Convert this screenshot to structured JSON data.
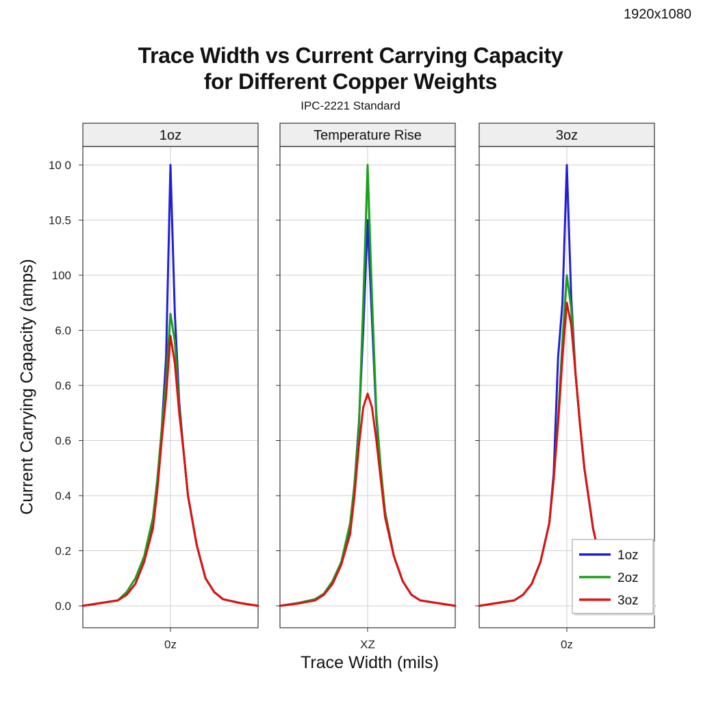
{
  "corner_label": "1920x1080",
  "chart_data": {
    "type": "line",
    "title": "Trace Width vs Current Carrying Capacity\nfor Different Copper Weights",
    "subtitle": "IPC-2221 Standard",
    "ylabel": "Current Carrying Capacity (amps)",
    "xlabel": "Trace Width (mils)",
    "ytick_labels": [
      "0.0",
      "0.2",
      "0.4",
      "0.6",
      "0.6",
      "6.0",
      "100",
      "10.5",
      "10 0"
    ],
    "ylim": [
      0,
      8
    ],
    "xlim": [
      -10,
      10
    ],
    "grid": true,
    "legend_position": "bottom-right",
    "legend": [
      "1oz",
      "2oz",
      "3oz"
    ],
    "colors": {
      "1oz": "#1f1fd6",
      "2oz": "#1aa01a",
      "3oz": "#e01010"
    },
    "panels": [
      {
        "title": "1oz",
        "xtick_label": "0z",
        "series": [
          {
            "name": "1oz",
            "x": [
              -10,
              -8,
              -6,
              -5,
              -4,
              -3,
              -2,
              -1.5,
              -1,
              -0.5,
              0,
              0.5,
              1,
              1.5,
              2,
              3,
              4,
              5,
              6,
              8,
              10
            ],
            "y": [
              0,
              0.05,
              0.1,
              0.2,
              0.4,
              0.8,
              1.5,
              2.2,
              3.2,
              4.5,
              8,
              5.3,
              3.7,
              2.8,
              2.0,
              1.1,
              0.5,
              0.25,
              0.12,
              0.05,
              0
            ]
          },
          {
            "name": "2oz",
            "x": [
              -10,
              -8,
              -6,
              -5,
              -4,
              -3,
              -2,
              -1.5,
              -1,
              -0.5,
              0,
              0.5,
              1,
              1.5,
              2,
              3,
              4,
              5,
              6,
              8,
              10
            ],
            "y": [
              0,
              0.05,
              0.1,
              0.25,
              0.5,
              0.9,
              1.6,
              2.3,
              3.2,
              4.1,
              5.3,
              4.8,
              3.6,
              2.8,
              2.0,
              1.1,
              0.5,
              0.25,
              0.12,
              0.05,
              0
            ]
          },
          {
            "name": "3oz",
            "x": [
              -10,
              -8,
              -6,
              -5,
              -4,
              -3,
              -2,
              -1.5,
              -1,
              -0.5,
              0,
              0.5,
              1,
              1.5,
              2,
              3,
              4,
              5,
              6,
              8,
              10
            ],
            "y": [
              0,
              0.05,
              0.1,
              0.2,
              0.4,
              0.8,
              1.4,
              2.1,
              3.0,
              3.8,
              4.9,
              4.4,
              3.5,
              2.8,
              2.0,
              1.1,
              0.5,
              0.25,
              0.12,
              0.05,
              0
            ]
          }
        ]
      },
      {
        "title": "Temperature Rise",
        "xtick_label": "XZ",
        "series": [
          {
            "name": "1oz",
            "x": [
              -10,
              -8,
              -6,
              -5,
              -4,
              -3,
              -2,
              -1.5,
              -1,
              -0.5,
              0,
              0.5,
              1,
              1.5,
              2,
              3,
              4,
              5,
              6,
              8,
              10
            ],
            "y": [
              0,
              0.05,
              0.1,
              0.2,
              0.4,
              0.75,
              1.4,
              2.2,
              3.3,
              5.0,
              7.0,
              5.2,
              3.4,
              2.4,
              1.7,
              0.9,
              0.45,
              0.2,
              0.1,
              0.05,
              0
            ]
          },
          {
            "name": "2oz",
            "x": [
              -10,
              -8,
              -6,
              -5,
              -4,
              -3,
              -2,
              -1.5,
              -1,
              -0.5,
              0,
              0.5,
              1,
              1.5,
              2,
              3,
              4,
              5,
              6,
              8,
              10
            ],
            "y": [
              0,
              0.05,
              0.12,
              0.22,
              0.45,
              0.8,
              1.5,
              2.2,
              3.2,
              5.5,
              8,
              5.6,
              3.5,
              2.5,
              1.7,
              0.9,
              0.45,
              0.2,
              0.1,
              0.05,
              0
            ]
          },
          {
            "name": "3oz",
            "x": [
              -10,
              -8,
              -6,
              -5,
              -4,
              -3,
              -2,
              -1.5,
              -1,
              -0.5,
              0,
              0.5,
              1,
              1.5,
              2,
              3,
              4,
              5,
              6,
              8,
              10
            ],
            "y": [
              0,
              0.04,
              0.1,
              0.2,
              0.4,
              0.75,
              1.3,
              2.0,
              2.9,
              3.6,
              3.85,
              3.6,
              3.0,
              2.3,
              1.6,
              0.9,
              0.45,
              0.2,
              0.1,
              0.05,
              0
            ]
          }
        ]
      },
      {
        "title": "3oz",
        "xtick_label": "0z",
        "series": [
          {
            "name": "1oz",
            "x": [
              -10,
              -8,
              -6,
              -5,
              -4,
              -3,
              -2,
              -1.5,
              -1,
              -0.5,
              0,
              0.5,
              1,
              1.5,
              2,
              3,
              4,
              5,
              6,
              8,
              10
            ],
            "y": [
              0,
              0.05,
              0.1,
              0.2,
              0.4,
              0.8,
              1.5,
              2.4,
              4.5,
              5.5,
              8,
              5.6,
              4.2,
              3.3,
              2.5,
              1.4,
              0.7,
              0.35,
              0.15,
              0.05,
              0
            ]
          },
          {
            "name": "2oz",
            "x": [
              -10,
              -8,
              -6,
              -5,
              -4,
              -3,
              -2,
              -1.5,
              -1,
              -0.5,
              0,
              0.5,
              1,
              1.5,
              2,
              3,
              4,
              5,
              6,
              8,
              10
            ],
            "y": [
              0,
              0.05,
              0.1,
              0.2,
              0.4,
              0.8,
              1.5,
              2.3,
              3.4,
              4.8,
              6.0,
              5.4,
              4.2,
              3.3,
              2.5,
              1.4,
              0.7,
              0.35,
              0.15,
              0.05,
              0
            ]
          },
          {
            "name": "3oz",
            "x": [
              -10,
              -8,
              -6,
              -5,
              -4,
              -3,
              -2,
              -1.5,
              -1,
              -0.5,
              0,
              0.5,
              1,
              1.5,
              2,
              3,
              4,
              5,
              6,
              8,
              10
            ],
            "y": [
              0,
              0.05,
              0.1,
              0.2,
              0.4,
              0.8,
              1.5,
              2.3,
              3.3,
              4.5,
              5.5,
              5.1,
              4.2,
              3.3,
              2.5,
              1.4,
              0.7,
              0.35,
              0.15,
              0.05,
              0
            ]
          }
        ]
      }
    ]
  }
}
